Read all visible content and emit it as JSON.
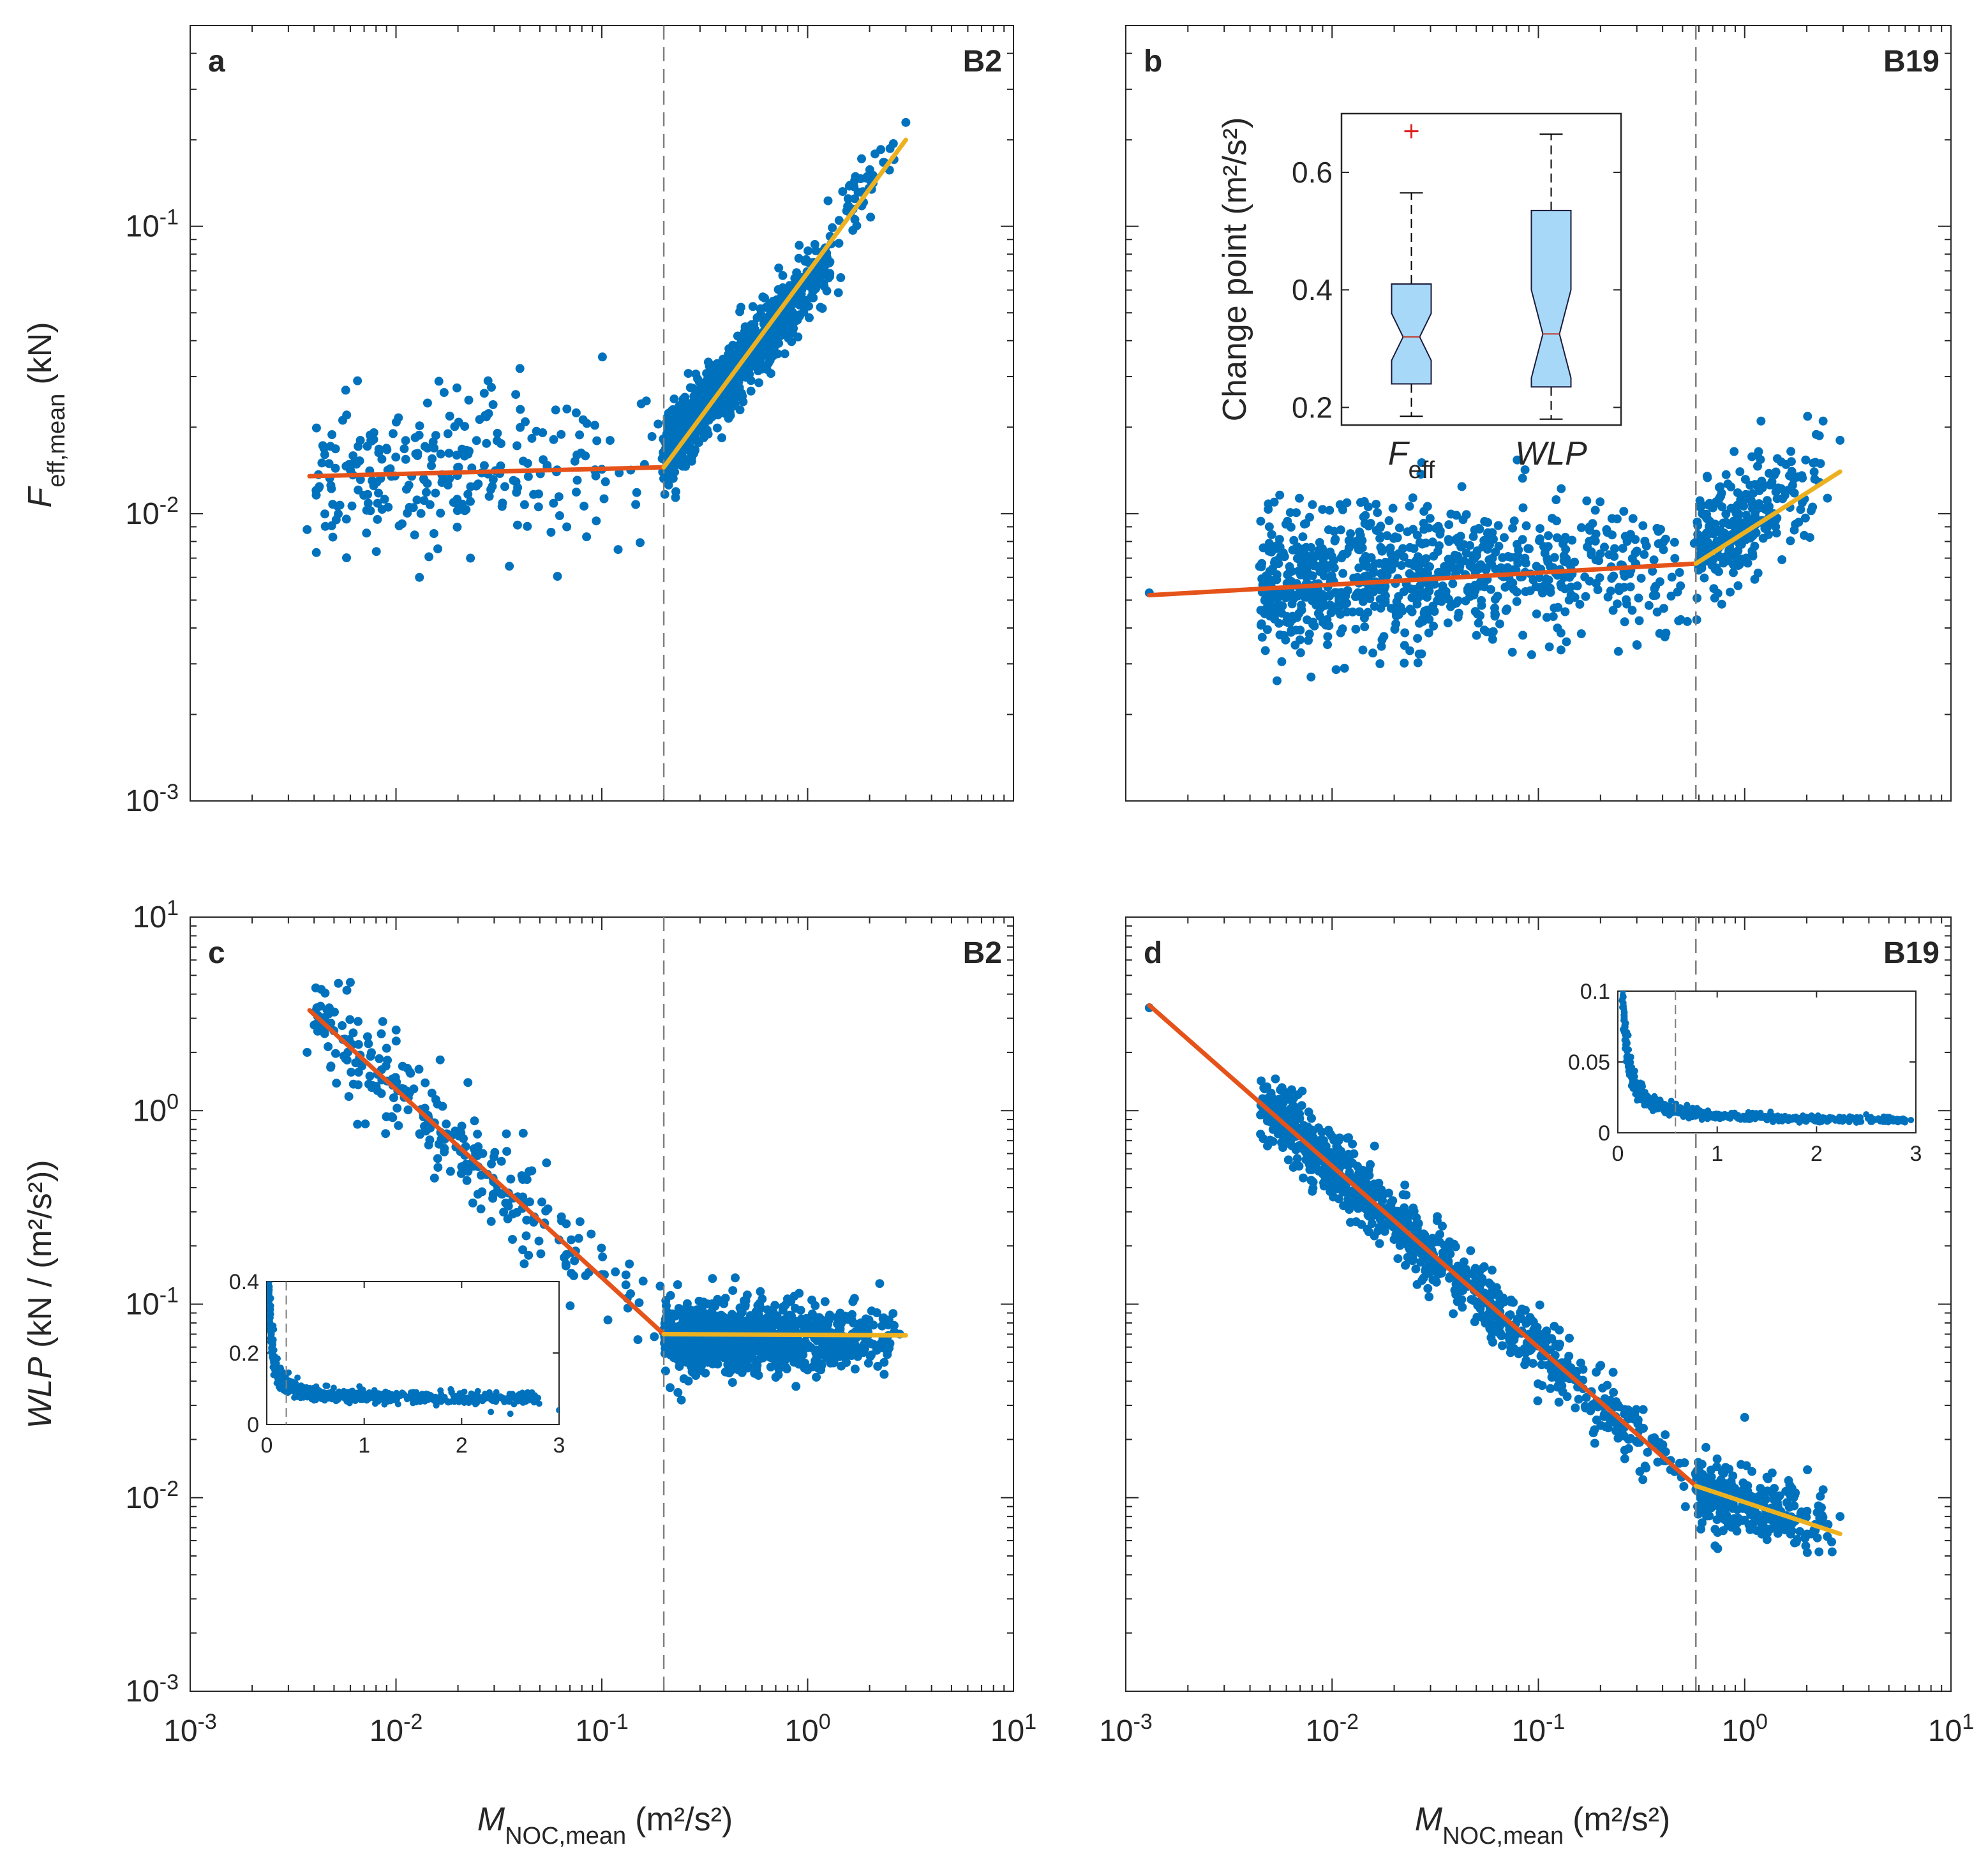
{
  "colors": {
    "points": "#0072BD",
    "fit_low": "#E5531A",
    "fit_high": "#EDB120",
    "changepoint": "#7f7f7f",
    "box_fill": "#A7D8F8",
    "median": "#C0392B",
    "outlier": "#E02020",
    "axis": "#262626"
  },
  "labels": {
    "xlabel_main": "M",
    "xlabel_sub": "NOC,mean",
    "xlabel_units": "(m²/s²)",
    "ylabel_top_main": "F",
    "ylabel_top_sub": "eff,mean",
    "ylabel_top_units": "(kN)",
    "ylabel_bottom_main": "WLP",
    "ylabel_bottom_units": "(kN / (m²/s²))"
  },
  "chart_data": [
    {
      "id": "a",
      "panel_letter": "a",
      "site": "B2",
      "type": "scatter",
      "xscale": "log",
      "yscale": "log",
      "xlim": [
        0.001,
        10
      ],
      "ylim": [
        0.001,
        0.5
      ],
      "xticks": [
        0.001,
        0.01,
        0.1,
        1,
        10
      ],
      "yticks": [
        0.001,
        0.01,
        0.1
      ],
      "show_xticklabels": false,
      "show_yticklabels": true,
      "xtick_labels": [
        [
          "10",
          "-3"
        ],
        [
          "10",
          "-2"
        ],
        [
          "10",
          "-1"
        ],
        [
          "10",
          "0"
        ],
        [
          "10",
          "1"
        ]
      ],
      "ytick_labels": [
        [
          "10",
          "-3"
        ],
        [
          "10",
          "-2"
        ],
        [
          "10",
          "-1"
        ]
      ],
      "changepoint_x": 0.2,
      "fit": [
        {
          "name": "below change point",
          "color_key": "fit_low",
          "x": [
            0.0038,
            0.2
          ],
          "y": [
            0.0135,
            0.0145
          ]
        },
        {
          "name": "above change point",
          "color_key": "fit_high",
          "x": [
            0.2,
            3.0
          ],
          "y": [
            0.0145,
            0.2
          ]
        }
      ],
      "scatter_segments": [
        {
          "x": [
            0.004,
            0.2
          ],
          "y": [
            0.0135,
            0.0145
          ],
          "n": 260,
          "sd": 0.13
        },
        {
          "x": [
            0.2,
            1.5
          ],
          "y": [
            0.016,
            0.09
          ],
          "n": 950,
          "sd": 0.06
        },
        {
          "x": [
            1.5,
            3.0
          ],
          "y": [
            0.11,
            0.21
          ],
          "n": 45,
          "sd": 0.05
        }
      ],
      "extra_points": [
        [
          0.0037,
          0.0088
        ],
        [
          0.0065,
          0.029
        ],
        [
          0.013,
          0.006
        ],
        [
          0.023,
          0.007
        ],
        [
          0.028,
          0.029
        ],
        [
          0.04,
          0.032
        ],
        [
          0.12,
          0.0075
        ],
        [
          3.0,
          0.23
        ]
      ],
      "seed": 11
    },
    {
      "id": "b",
      "panel_letter": "b",
      "site": "B19",
      "type": "scatter",
      "xscale": "log",
      "yscale": "log",
      "xlim": [
        0.001,
        10
      ],
      "ylim": [
        0.001,
        0.5
      ],
      "xticks": [
        0.001,
        0.01,
        0.1,
        1,
        10
      ],
      "yticks": [
        0.001,
        0.01,
        0.1
      ],
      "show_xticklabels": false,
      "show_yticklabels": false,
      "xtick_labels": [
        [
          "10",
          "-3"
        ],
        [
          "10",
          "-2"
        ],
        [
          "10",
          "-1"
        ],
        [
          "10",
          "0"
        ],
        [
          "10",
          "1"
        ]
      ],
      "ytick_labels": [
        [
          "10",
          "-3"
        ],
        [
          "10",
          "-2"
        ],
        [
          "10",
          "-1"
        ]
      ],
      "changepoint_x": 0.58,
      "fit": [
        {
          "name": "below change point",
          "color_key": "fit_low",
          "x": [
            0.0013,
            0.58
          ],
          "y": [
            0.0052,
            0.0067
          ]
        },
        {
          "name": "above change point",
          "color_key": "fit_high",
          "x": [
            0.58,
            2.9
          ],
          "y": [
            0.0067,
            0.014
          ]
        }
      ],
      "scatter_segments": [
        {
          "x": [
            0.0045,
            0.58
          ],
          "y": [
            0.0057,
            0.0066
          ],
          "n": 850,
          "sd": 0.12
        },
        {
          "x": [
            0.58,
            2.6
          ],
          "y": [
            0.0075,
            0.0145
          ],
          "n": 280,
          "sd": 0.1
        }
      ],
      "extra_points": [
        [
          0.0013,
          0.0053
        ],
        [
          0.0095,
          0.0035
        ],
        [
          0.3,
          0.0035
        ],
        [
          1.2,
          0.021
        ],
        [
          2.4,
          0.021
        ],
        [
          2.9,
          0.018
        ],
        [
          0.006,
          0.0042
        ]
      ],
      "seed": 23
    },
    {
      "id": "c",
      "panel_letter": "c",
      "site": "B2",
      "type": "scatter",
      "xscale": "log",
      "yscale": "log",
      "xlim": [
        0.001,
        10
      ],
      "ylim": [
        0.001,
        10
      ],
      "xticks": [
        0.001,
        0.01,
        0.1,
        1,
        10
      ],
      "yticks": [
        0.001,
        0.01,
        0.1,
        1,
        10
      ],
      "show_xticklabels": true,
      "show_yticklabels": true,
      "xtick_labels": [
        [
          "10",
          "-3"
        ],
        [
          "10",
          "-2"
        ],
        [
          "10",
          "-1"
        ],
        [
          "10",
          "0"
        ],
        [
          "10",
          "1"
        ]
      ],
      "ytick_labels": [
        [
          "10",
          "-3"
        ],
        [
          "10",
          "-2"
        ],
        [
          "10",
          "-1"
        ],
        [
          "10",
          "0"
        ],
        [
          "10",
          "1"
        ]
      ],
      "changepoint_x": 0.2,
      "fit": [
        {
          "name": "below change point",
          "color_key": "fit_low",
          "x": [
            0.0038,
            0.2
          ],
          "y": [
            3.3,
            0.07
          ]
        },
        {
          "name": "above change point",
          "color_key": "fit_high",
          "x": [
            0.2,
            3.0
          ],
          "y": [
            0.07,
            0.069
          ]
        }
      ],
      "scatter_segments": [
        {
          "x": [
            0.004,
            0.2
          ],
          "y": [
            3.2,
            0.07
          ],
          "n": 260,
          "sd": 0.12
        },
        {
          "x": [
            0.2,
            2.8
          ],
          "y": [
            0.068,
            0.067
          ],
          "n": 1000,
          "sd": 0.09
        }
      ],
      "extra_points": [
        [
          0.0037,
          2.0
        ],
        [
          0.006,
          4.6
        ],
        [
          0.009,
          2.1
        ],
        [
          0.025,
          0.37
        ],
        [
          0.0065,
          0.85
        ],
        [
          2.8,
          0.07
        ]
      ],
      "inset": {
        "xlim": [
          0,
          3
        ],
        "ylim": [
          0,
          0.4
        ],
        "xticks": [
          0,
          1,
          2,
          3
        ],
        "yticks": [
          0,
          0.2,
          0.4
        ],
        "xtick_labels": [
          "0",
          "1",
          "2",
          "3"
        ],
        "ytick_labels": [
          "0",
          "0.2",
          "0.4"
        ],
        "changepoint_x": 0.2,
        "curve": {
          "a": 0.0082,
          "b": 0.069,
          "xmin": 0.02,
          "xmax": 2.8
        },
        "extra_points": [
          [
            2.3,
            0.035
          ],
          [
            2.5,
            0.03
          ],
          [
            3.0,
            0.04
          ],
          [
            1.5,
            0.06
          ]
        ]
      },
      "seed": 37
    },
    {
      "id": "d",
      "panel_letter": "d",
      "site": "B19",
      "type": "scatter",
      "xscale": "log",
      "yscale": "log",
      "xlim": [
        0.001,
        10
      ],
      "ylim": [
        0.001,
        10
      ],
      "xticks": [
        0.001,
        0.01,
        0.1,
        1,
        10
      ],
      "yticks": [
        0.001,
        0.01,
        0.1,
        1,
        10
      ],
      "show_xticklabels": true,
      "show_yticklabels": false,
      "xtick_labels": [
        [
          "10",
          "-3"
        ],
        [
          "10",
          "-2"
        ],
        [
          "10",
          "-1"
        ],
        [
          "10",
          "0"
        ],
        [
          "10",
          "1"
        ]
      ],
      "ytick_labels": [
        [
          "10",
          "-3"
        ],
        [
          "10",
          "-2"
        ],
        [
          "10",
          "-1"
        ],
        [
          "10",
          "0"
        ],
        [
          "10",
          "1"
        ]
      ],
      "changepoint_x": 0.58,
      "fit": [
        {
          "name": "below change point",
          "color_key": "fit_low",
          "x": [
            0.0013,
            0.58
          ],
          "y": [
            3.5,
            0.0115
          ]
        },
        {
          "name": "above change point",
          "color_key": "fit_high",
          "x": [
            0.58,
            2.9
          ],
          "y": [
            0.0115,
            0.0065
          ]
        }
      ],
      "scatter_segments": [
        {
          "x": [
            0.0045,
            0.58
          ],
          "y": [
            1.07,
            0.0115
          ],
          "n": 900,
          "sd": 0.09
        },
        {
          "x": [
            0.58,
            2.8
          ],
          "y": [
            0.0105,
            0.0072
          ],
          "n": 300,
          "sd": 0.09
        }
      ],
      "extra_points": [
        [
          0.0013,
          3.4
        ],
        [
          0.0045,
          0.95
        ],
        [
          0.016,
          0.3
        ],
        [
          1.0,
          0.026
        ],
        [
          2.4,
          0.011
        ],
        [
          2.9,
          0.008
        ]
      ],
      "inset": {
        "xlim": [
          0,
          3
        ],
        "ylim": [
          0,
          0.1
        ],
        "xticks": [
          0,
          1,
          2,
          3
        ],
        "yticks": [
          0,
          0.05,
          0.1
        ],
        "xtick_labels": [
          "0",
          "1",
          "2",
          "3"
        ],
        "ytick_labels": [
          "0",
          "0.05",
          "0.1"
        ],
        "changepoint_x": 0.58,
        "curve": {
          "a": 0.0046,
          "b": 0.0075,
          "xmin": 0.04,
          "xmax": 2.9
        },
        "extra_points": [
          [
            2.0,
            0.01
          ],
          [
            2.5,
            0.013
          ],
          [
            2.95,
            0.009
          ],
          [
            1.3,
            0.012
          ]
        ]
      },
      "seed": 51
    },
    {
      "id": "boxplot",
      "type": "boxplot",
      "parent_panel": "b",
      "ylabel": "Change point (m²/s²)",
      "ylim": [
        0.17,
        0.7
      ],
      "yticks": [
        0.2,
        0.4,
        0.6
      ],
      "ytick_labels": [
        "0.2",
        "0.4",
        "0.6"
      ],
      "categories": [
        {
          "label_main": "F",
          "label_sub": "eff",
          "italic": true,
          "whisker_low": 0.185,
          "q1": 0.24,
          "median": 0.32,
          "q3": 0.41,
          "whisker_high": 0.565,
          "notch": [
            0.28,
            0.36
          ],
          "outliers": [
            0.67
          ]
        },
        {
          "label_main": "WLP",
          "label_sub": "",
          "italic": true,
          "whisker_low": 0.18,
          "q1": 0.235,
          "median": 0.325,
          "q3": 0.535,
          "whisker_high": 0.665,
          "notch": [
            0.25,
            0.4
          ],
          "outliers": []
        }
      ]
    }
  ]
}
